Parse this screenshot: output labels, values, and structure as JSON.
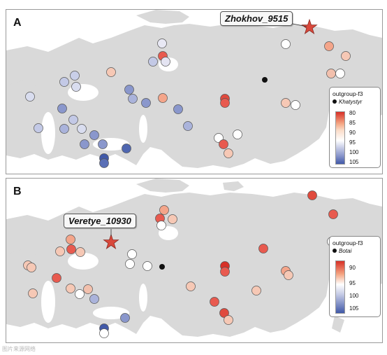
{
  "panels": [
    {
      "id": "A",
      "letter": "A",
      "focal_sample": "Zhokhov_9515",
      "legend": {
        "title": "outgroup-f3",
        "key_label": "Khatystyr",
        "ticks": [
          "80",
          "85",
          "90",
          "95",
          "100",
          "105"
        ]
      }
    },
    {
      "id": "B",
      "letter": "B",
      "focal_sample": "Veretye_10930",
      "legend": {
        "title": "outgroup-f3",
        "key_label": "Botai",
        "ticks": [
          "90",
          "95",
          "100",
          "105"
        ]
      }
    }
  ],
  "colors": {
    "land": "#d9d9d9",
    "sea": "#ffffff",
    "star": "#d9483b",
    "high_end": "#d73027",
    "mid": "#ffffff",
    "low_end": "#4159a8"
  },
  "watermark": "图片来源网络"
}
